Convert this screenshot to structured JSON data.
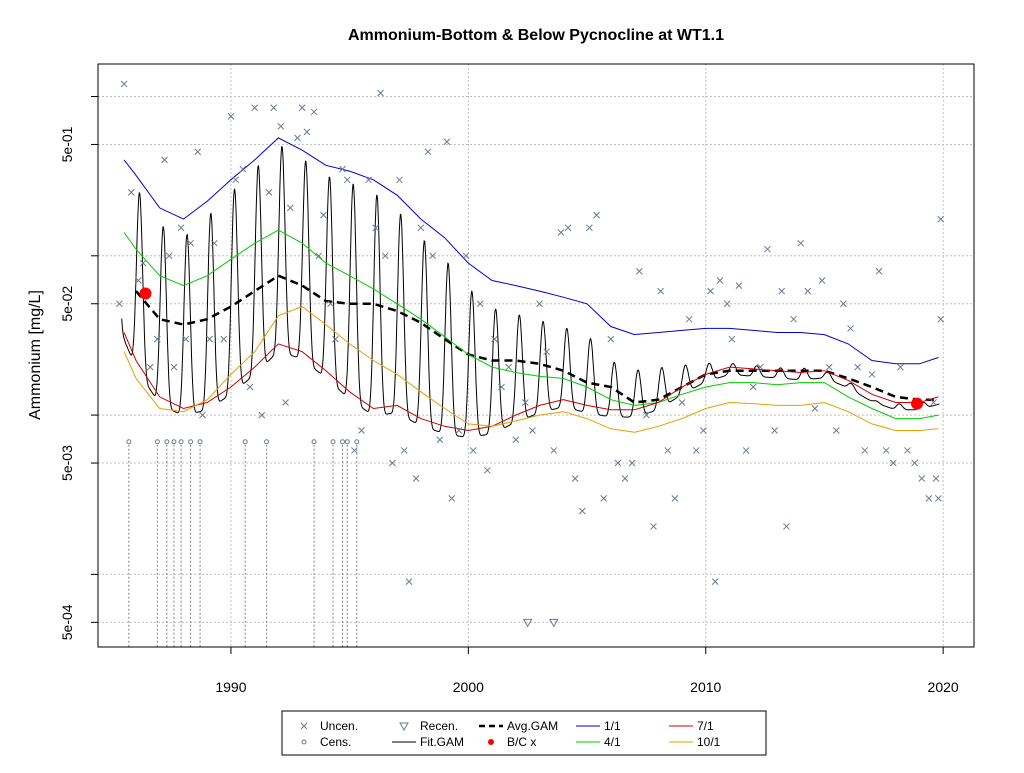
{
  "chart_data": {
    "type": "scatter",
    "title": "Ammonium-Bottom & Below Pycnocline at WT1.1",
    "xlabel": "",
    "ylabel": "Ammonium [mg/L]",
    "y_scale": "log",
    "xlim": [
      1984.4,
      2021.3
    ],
    "ylim": [
      0.00035,
      1.6
    ],
    "x_ticks": [
      {
        "label": "1990",
        "value": 1990
      },
      {
        "label": "2000",
        "value": 2000
      },
      {
        "label": "2010",
        "value": 2010
      },
      {
        "label": "2020",
        "value": 2020
      }
    ],
    "y_ticks": [
      {
        "label": "5e-04",
        "value": 0.0005
      },
      {
        "label": "5e-03",
        "value": 0.005
      },
      {
        "label": "5e-02",
        "value": 0.05
      },
      {
        "label": "5e-01",
        "value": 0.5
      }
    ],
    "grid": true,
    "legend": {
      "placement": "bottom",
      "items": [
        {
          "label": "Uncen.",
          "symbol": "x",
          "color": "#6b7b8c"
        },
        {
          "label": "Cens.",
          "symbol": "circle",
          "color": "#6b7b8c"
        },
        {
          "label": "Recen.",
          "symbol": "triangle-down",
          "color": "#6b7b8c"
        },
        {
          "label": "Fit.GAM",
          "symbol": "line",
          "color": "#000000"
        },
        {
          "label": "Avg.GAM",
          "symbol": "dashed",
          "color": "#000000"
        },
        {
          "label": "B/C x",
          "symbol": "dot",
          "color": "#ff0000"
        },
        {
          "label": "1/1",
          "symbol": "line",
          "color": "#0000cd"
        },
        {
          "label": "4/1",
          "symbol": "line",
          "color": "#00cd00"
        },
        {
          "label": "7/1",
          "symbol": "line",
          "color": "#cd0000"
        },
        {
          "label": "10/1",
          "symbol": "line",
          "color": "#e69f00"
        }
      ]
    },
    "colors": {
      "scatter": "#6b7b8c",
      "fit": "#000000",
      "avg": "#000000",
      "bc": "#ff0000",
      "jan": "#0000cd",
      "apr": "#00cd00",
      "jul": "#cd0000",
      "oct": "#e69f00",
      "grid": "#c0c0c0"
    },
    "series": [
      {
        "name": "Avg.GAM",
        "x": [
          1986.0,
          1987.0,
          1988.0,
          1989.0,
          1990.0,
          1991.0,
          1992.0,
          1993.0,
          1994.0,
          1995.0,
          1996.0,
          1997.0,
          1998.0,
          1999.0,
          2000.0,
          2001.0,
          2002.0,
          2003.0,
          2004.0,
          2005.0,
          2006.0,
          2007.0,
          2008.0,
          2009.0,
          2010.0,
          2011.0,
          2012.0,
          2013.0,
          2014.0,
          2015.0,
          2016.0,
          2017.0,
          2018.0,
          2019.0,
          2019.8
        ],
        "y": [
          0.06,
          0.04,
          0.037,
          0.04,
          0.048,
          0.06,
          0.075,
          0.065,
          0.052,
          0.05,
          0.05,
          0.045,
          0.038,
          0.03,
          0.024,
          0.022,
          0.022,
          0.021,
          0.019,
          0.016,
          0.015,
          0.012,
          0.0125,
          0.015,
          0.018,
          0.019,
          0.019,
          0.019,
          0.019,
          0.019,
          0.017,
          0.015,
          0.013,
          0.0125,
          0.0125
        ]
      },
      {
        "name": "1/1",
        "x": [
          1985.5,
          1986.0,
          1987.0,
          1988.0,
          1989.0,
          1990.0,
          1991.0,
          1992.0,
          1993.0,
          1994.0,
          1995.0,
          1996.0,
          1997.0,
          1998.0,
          1999.0,
          2000.0,
          2001.0,
          2002.0,
          2003.0,
          2004.0,
          2005.0,
          2006.0,
          2007.0,
          2008.0,
          2009.0,
          2010.0,
          2011.0,
          2012.0,
          2013.0,
          2014.0,
          2015.0,
          2016.0,
          2017.0,
          2018.0,
          2019.0,
          2019.8
        ],
        "y": [
          0.4,
          0.32,
          0.2,
          0.17,
          0.22,
          0.3,
          0.4,
          0.55,
          0.46,
          0.37,
          0.34,
          0.3,
          0.24,
          0.17,
          0.13,
          0.09,
          0.07,
          0.065,
          0.06,
          0.055,
          0.05,
          0.036,
          0.032,
          0.033,
          0.034,
          0.035,
          0.035,
          0.034,
          0.033,
          0.033,
          0.032,
          0.028,
          0.022,
          0.021,
          0.021,
          0.023
        ]
      },
      {
        "name": "4/1",
        "x": [
          1985.5,
          1986.0,
          1987.0,
          1988.0,
          1989.0,
          1990.0,
          1991.0,
          1992.0,
          1993.0,
          1994.0,
          1995.0,
          1996.0,
          1997.0,
          1998.0,
          1999.0,
          2000.0,
          2001.0,
          2002.0,
          2003.0,
          2004.0,
          2005.0,
          2006.0,
          2007.0,
          2008.0,
          2009.0,
          2010.0,
          2011.0,
          2012.0,
          2013.0,
          2014.0,
          2015.0,
          2016.0,
          2017.0,
          2018.0,
          2019.0,
          2019.8
        ],
        "y": [
          0.14,
          0.11,
          0.075,
          0.065,
          0.075,
          0.095,
          0.12,
          0.145,
          0.12,
          0.09,
          0.075,
          0.062,
          0.05,
          0.04,
          0.031,
          0.024,
          0.02,
          0.0185,
          0.0175,
          0.017,
          0.015,
          0.0125,
          0.0115,
          0.012,
          0.0135,
          0.015,
          0.016,
          0.016,
          0.0155,
          0.016,
          0.016,
          0.013,
          0.011,
          0.0095,
          0.0095,
          0.01
        ]
      },
      {
        "name": "7/1",
        "x": [
          1985.5,
          1986.0,
          1987.0,
          1988.0,
          1989.0,
          1990.0,
          1991.0,
          1992.0,
          1993.0,
          1994.0,
          1995.0,
          1996.0,
          1997.0,
          1998.0,
          1999.0,
          2000.0,
          2001.0,
          2002.0,
          2003.0,
          2004.0,
          2005.0,
          2006.0,
          2007.0,
          2008.0,
          2009.0,
          2010.0,
          2011.0,
          2012.0,
          2013.0,
          2014.0,
          2015.0,
          2016.0,
          2017.0,
          2018.0,
          2019.0,
          2019.8
        ],
        "y": [
          0.033,
          0.022,
          0.013,
          0.011,
          0.012,
          0.015,
          0.02,
          0.028,
          0.025,
          0.019,
          0.014,
          0.011,
          0.0115,
          0.0095,
          0.0085,
          0.008,
          0.0085,
          0.01,
          0.0115,
          0.0125,
          0.0115,
          0.0108,
          0.0108,
          0.012,
          0.015,
          0.018,
          0.02,
          0.0195,
          0.019,
          0.0185,
          0.019,
          0.0165,
          0.0135,
          0.012,
          0.012,
          0.013
        ]
      },
      {
        "name": "10/1",
        "x": [
          1985.5,
          1986.0,
          1987.0,
          1988.0,
          1989.0,
          1990.0,
          1991.0,
          1992.0,
          1993.0,
          1994.0,
          1995.0,
          1996.0,
          1997.0,
          1998.0,
          1999.0,
          2000.0,
          2001.0,
          2002.0,
          2003.0,
          2004.0,
          2005.0,
          2006.0,
          2007.0,
          2008.0,
          2009.0,
          2010.0,
          2011.0,
          2012.0,
          2013.0,
          2014.0,
          2015.0,
          2016.0,
          2017.0,
          2018.0,
          2019.0,
          2019.8
        ],
        "y": [
          0.025,
          0.017,
          0.011,
          0.0105,
          0.0125,
          0.018,
          0.025,
          0.042,
          0.048,
          0.037,
          0.028,
          0.022,
          0.018,
          0.014,
          0.011,
          0.0088,
          0.0085,
          0.0092,
          0.01,
          0.0105,
          0.0095,
          0.0082,
          0.0078,
          0.0085,
          0.0095,
          0.011,
          0.012,
          0.0118,
          0.0115,
          0.0115,
          0.012,
          0.0105,
          0.0088,
          0.008,
          0.008,
          0.0082
        ]
      }
    ],
    "bc_points": [
      {
        "x": 1986.4,
        "y": 0.058
      },
      {
        "x": 2018.9,
        "y": 0.0118
      }
    ],
    "uncensored": [
      [
        1985.3,
        0.05
      ],
      [
        1985.5,
        1.2
      ],
      [
        1985.8,
        0.25
      ],
      [
        1986.1,
        0.07
      ],
      [
        1986.3,
        0.09
      ],
      [
        1986.6,
        0.02
      ],
      [
        1986.9,
        0.03
      ],
      [
        1987.2,
        0.4
      ],
      [
        1987.4,
        0.1
      ],
      [
        1987.6,
        0.02
      ],
      [
        1987.9,
        0.15
      ],
      [
        1988.1,
        0.03
      ],
      [
        1988.3,
        0.12
      ],
      [
        1988.6,
        0.45
      ],
      [
        1988.8,
        0.01
      ],
      [
        1989.1,
        0.03
      ],
      [
        1989.3,
        0.12
      ],
      [
        1989.7,
        0.03
      ],
      [
        1990.0,
        0.75
      ],
      [
        1990.2,
        0.3
      ],
      [
        1990.5,
        0.35
      ],
      [
        1990.8,
        0.015
      ],
      [
        1991.0,
        0.85
      ],
      [
        1991.3,
        0.01
      ],
      [
        1991.6,
        0.25
      ],
      [
        1991.8,
        0.85
      ],
      [
        1992.1,
        0.65
      ],
      [
        1992.3,
        0.012
      ],
      [
        1992.5,
        0.2
      ],
      [
        1992.8,
        0.55
      ],
      [
        1993.0,
        0.85
      ],
      [
        1993.2,
        0.6
      ],
      [
        1993.5,
        0.8
      ],
      [
        1993.7,
        0.1
      ],
      [
        1993.9,
        0.18
      ],
      [
        1994.2,
        0.05
      ],
      [
        1994.4,
        0.03
      ],
      [
        1994.7,
        0.35
      ],
      [
        1994.9,
        0.3
      ],
      [
        1995.2,
        0.006
      ],
      [
        1995.5,
        0.008
      ],
      [
        1995.8,
        0.3
      ],
      [
        1996.1,
        0.15
      ],
      [
        1996.3,
        1.05
      ],
      [
        1996.5,
        0.1
      ],
      [
        1996.8,
        0.005
      ],
      [
        1997.1,
        0.3
      ],
      [
        1997.3,
        0.006
      ],
      [
        1997.5,
        0.0009
      ],
      [
        1997.8,
        0.004
      ],
      [
        1998.0,
        0.15
      ],
      [
        1998.3,
        0.45
      ],
      [
        1998.5,
        0.1
      ],
      [
        1998.8,
        0.007
      ],
      [
        1999.1,
        0.52
      ],
      [
        1999.3,
        0.003
      ],
      [
        1999.6,
        0.008
      ],
      [
        1999.9,
        0.1
      ],
      [
        2000.2,
        0.006
      ],
      [
        2000.5,
        0.05
      ],
      [
        2000.8,
        0.0045
      ],
      [
        2001.1,
        0.03
      ],
      [
        2001.4,
        0.015
      ],
      [
        2001.7,
        0.02
      ],
      [
        2002.0,
        0.007
      ],
      [
        2002.4,
        0.012
      ],
      [
        2002.7,
        0.008
      ],
      [
        2003.0,
        0.05
      ],
      [
        2003.3,
        0.025
      ],
      [
        2003.6,
        0.006
      ],
      [
        2003.9,
        0.14
      ],
      [
        2004.2,
        0.15
      ],
      [
        2004.5,
        0.004
      ],
      [
        2004.8,
        0.0025
      ],
      [
        2005.1,
        0.15
      ],
      [
        2005.4,
        0.18
      ],
      [
        2005.7,
        0.003
      ],
      [
        2006.0,
        0.03
      ],
      [
        2006.3,
        0.005
      ],
      [
        2006.6,
        0.004
      ],
      [
        2006.9,
        0.005
      ],
      [
        2007.2,
        0.08
      ],
      [
        2007.5,
        0.01
      ],
      [
        2007.8,
        0.002
      ],
      [
        2008.1,
        0.06
      ],
      [
        2008.4,
        0.006
      ],
      [
        2008.7,
        0.003
      ],
      [
        2009.0,
        0.012
      ],
      [
        2009.3,
        0.04
      ],
      [
        2009.6,
        0.006
      ],
      [
        2009.9,
        0.008
      ],
      [
        2010.2,
        0.06
      ],
      [
        2010.4,
        0.0009
      ],
      [
        2010.6,
        0.07
      ],
      [
        2010.9,
        0.05
      ],
      [
        2011.1,
        0.03
      ],
      [
        2011.4,
        0.065
      ],
      [
        2011.7,
        0.006
      ],
      [
        2012.0,
        0.015
      ],
      [
        2012.3,
        0.02
      ],
      [
        2012.6,
        0.11
      ],
      [
        2012.9,
        0.008
      ],
      [
        2013.2,
        0.06
      ],
      [
        2013.4,
        0.002
      ],
      [
        2013.7,
        0.04
      ],
      [
        2014.0,
        0.12
      ],
      [
        2014.3,
        0.06
      ],
      [
        2014.6,
        0.011
      ],
      [
        2014.9,
        0.07
      ],
      [
        2015.2,
        0.02
      ],
      [
        2015.5,
        0.008
      ],
      [
        2015.8,
        0.05
      ],
      [
        2016.1,
        0.035
      ],
      [
        2016.4,
        0.02
      ],
      [
        2016.7,
        0.006
      ],
      [
        2017.0,
        0.018
      ],
      [
        2017.3,
        0.08
      ],
      [
        2017.6,
        0.006
      ],
      [
        2017.9,
        0.005
      ],
      [
        2018.2,
        0.02
      ],
      [
        2018.5,
        0.006
      ],
      [
        2018.8,
        0.005
      ],
      [
        2019.1,
        0.004
      ],
      [
        2019.4,
        0.003
      ],
      [
        2019.6,
        0.012
      ],
      [
        2019.8,
        0.003
      ],
      [
        2019.9,
        0.17
      ],
      [
        2019.9,
        0.04
      ],
      [
        2019.7,
        0.004
      ]
    ],
    "censored": [
      [
        1985.7,
        0.0068
      ],
      [
        1986.9,
        0.0068
      ],
      [
        1987.3,
        0.0068
      ],
      [
        1987.6,
        0.0068
      ],
      [
        1987.9,
        0.0068
      ],
      [
        1988.3,
        0.0068
      ],
      [
        1988.7,
        0.0068
      ],
      [
        1990.6,
        0.0068
      ],
      [
        1991.5,
        0.0068
      ],
      [
        1993.5,
        0.0068
      ],
      [
        1994.3,
        0.0068
      ],
      [
        1994.7,
        0.0068
      ],
      [
        1994.9,
        0.0068
      ],
      [
        1995.3,
        0.0068
      ]
    ],
    "recensored": [
      [
        2002.5,
        0.0005
      ],
      [
        2003.6,
        0.0005
      ]
    ]
  }
}
